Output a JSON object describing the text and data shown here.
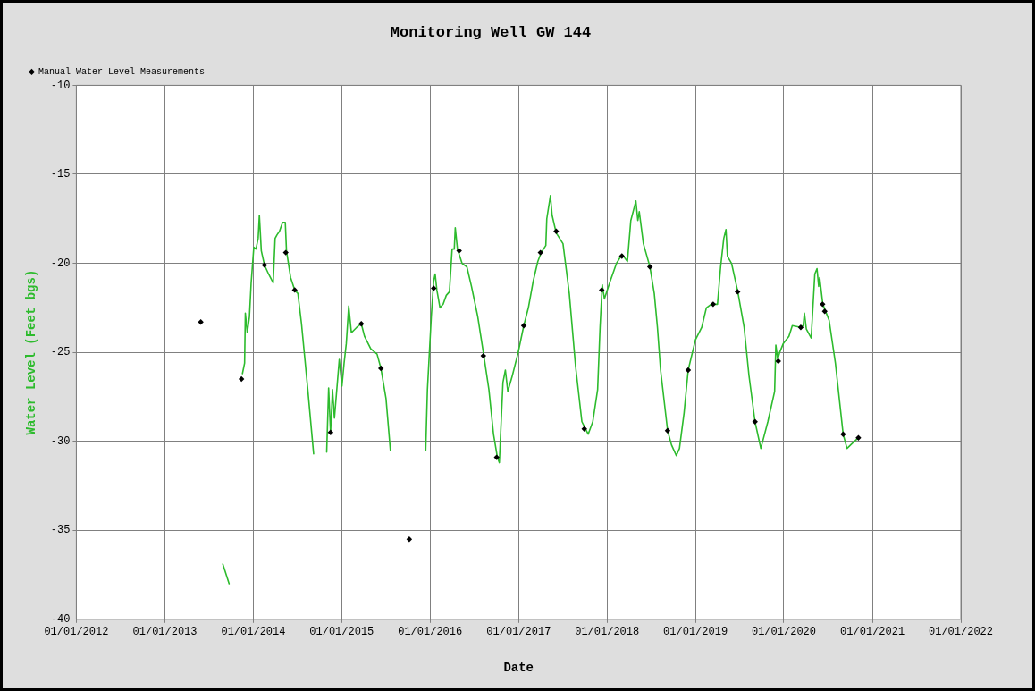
{
  "chart_data": {
    "type": "line",
    "title": "Monitoring Well GW_144",
    "xlabel": "Date",
    "ylabel": "Water Level (Feet bgs)",
    "xlim": [
      "2012-01-01",
      "2022-01-01"
    ],
    "xticks": [
      {
        "value": "2012-01-01",
        "label": "01/01/2012"
      },
      {
        "value": "2013-01-01",
        "label": "01/01/2013"
      },
      {
        "value": "2014-01-01",
        "label": "01/01/2014"
      },
      {
        "value": "2015-01-01",
        "label": "01/01/2015"
      },
      {
        "value": "2016-01-01",
        "label": "01/01/2016"
      },
      {
        "value": "2017-01-01",
        "label": "01/01/2017"
      },
      {
        "value": "2018-01-01",
        "label": "01/01/2018"
      },
      {
        "value": "2019-01-01",
        "label": "01/01/2019"
      },
      {
        "value": "2020-01-01",
        "label": "01/01/2020"
      },
      {
        "value": "2021-01-01",
        "label": "01/01/2021"
      },
      {
        "value": "2022-01-01",
        "label": "01/01/2022"
      }
    ],
    "ylim": [
      -40,
      -10
    ],
    "yticks": [
      -40,
      -35,
      -30,
      -25,
      -20,
      -15,
      -10
    ],
    "grid": true,
    "legend": "top left",
    "series": [
      {
        "type": "line",
        "color": "#2dbb2d",
        "marker": "none",
        "x": [
          "2013-08-28",
          "2013-09-23",
          "2013-10-20",
          "2013-11-17",
          "2013-11-26",
          "2013-11-29",
          "2013-12-07",
          "2013-12-16",
          "2013-12-23",
          "2014-01-03",
          "2014-01-12",
          "2014-01-21",
          "2014-01-26",
          "2014-02-03",
          "2014-02-16",
          "2014-03-05",
          "2014-03-24",
          "2014-04-01",
          "2014-04-09",
          "2014-04-19",
          "2014-05-02",
          "2014-05-13",
          "2014-05-18",
          "2014-06-04",
          "2014-06-21",
          "2014-07-04",
          "2014-07-19",
          "2014-08-14",
          "2014-09-07",
          "2014-10-01",
          "2014-10-31",
          "2014-11-08",
          "2014-11-16",
          "2014-11-24",
          "2014-12-02",
          "2014-12-22",
          "2015-01-02",
          "2015-01-11",
          "2015-01-20",
          "2015-01-30",
          "2015-02-10",
          "2015-03-04",
          "2015-03-23",
          "2015-04-05",
          "2015-05-01",
          "2015-05-27",
          "2015-06-12",
          "2015-07-03",
          "2015-07-21",
          "2015-10-01",
          "2015-12-14",
          "2015-12-21",
          "2016-01-06",
          "2016-01-16",
          "2016-01-22",
          "2016-01-29",
          "2016-02-11",
          "2016-02-24",
          "2016-03-08",
          "2016-03-21",
          "2016-04-01",
          "2016-04-10",
          "2016-04-14",
          "2016-04-23",
          "2016-05-12",
          "2016-06-01",
          "2016-06-20",
          "2016-07-16",
          "2016-08-09",
          "2016-08-31",
          "2016-09-19",
          "2016-10-05",
          "2016-10-13",
          "2016-10-22",
          "2016-10-28",
          "2016-11-07",
          "2016-11-17",
          "2016-12-06",
          "2016-12-30",
          "2017-01-22",
          "2017-02-10",
          "2017-03-02",
          "2017-03-21",
          "2017-04-04",
          "2017-04-23",
          "2017-04-27",
          "2017-05-12",
          "2017-05-19",
          "2017-06-05",
          "2017-07-03",
          "2017-07-29",
          "2017-08-24",
          "2017-09-19",
          "2017-10-15",
          "2017-11-03",
          "2017-11-23",
          "2017-12-03",
          "2017-12-12",
          "2017-12-21",
          "2018-01-14",
          "2018-02-09",
          "2018-03-04",
          "2018-03-26",
          "2018-04-09",
          "2018-04-30",
          "2018-05-08",
          "2018-05-14",
          "2018-05-31",
          "2018-06-27",
          "2018-07-15",
          "2018-07-28",
          "2018-08-10",
          "2018-09-08",
          "2018-09-24",
          "2018-10-14",
          "2018-10-27",
          "2018-11-15",
          "2018-12-02",
          "2019-01-01",
          "2019-01-27",
          "2019-02-15",
          "2019-03-07",
          "2019-04-02",
          "2019-04-15",
          "2019-04-28",
          "2019-05-07",
          "2019-05-13",
          "2019-05-30",
          "2019-06-25",
          "2019-07-21",
          "2019-08-10",
          "2019-09-04",
          "2019-09-28",
          "2019-10-27",
          "2019-11-24",
          "2019-11-29",
          "2019-12-07",
          "2019-12-15",
          "2019-12-30",
          "2020-01-22",
          "2020-02-05",
          "2020-03-11",
          "2020-03-21",
          "2020-03-26",
          "2020-04-03",
          "2020-04-23",
          "2020-05-08",
          "2020-05-17",
          "2020-05-24",
          "2020-05-28",
          "2020-06-10",
          "2020-07-06",
          "2020-08-01",
          "2020-09-02",
          "2020-09-18",
          "2020-10-11",
          "2020-11-04"
        ],
        "values": [
          -36.9,
          -38.0,
          null,
          -26.2,
          -25.6,
          -22.8,
          -23.9,
          -23.0,
          -21.1,
          -19.1,
          -19.2,
          -18.6,
          -17.3,
          -19.3,
          -20.1,
          -20.6,
          -21.1,
          -18.6,
          -18.4,
          -18.2,
          -17.7,
          -17.7,
          -19.3,
          -20.8,
          -21.5,
          -21.7,
          -23.4,
          -27.1,
          -30.7,
          null,
          -30.6,
          -27.0,
          -29.5,
          -27.1,
          -28.7,
          -25.4,
          -26.9,
          -25.6,
          -24.5,
          -22.4,
          -23.9,
          -23.6,
          -23.4,
          -24.1,
          -24.8,
          -25.1,
          -25.9,
          -27.6,
          -30.5,
          null,
          -30.5,
          -27.1,
          -23.0,
          -21.0,
          -20.6,
          -21.5,
          -22.5,
          -22.3,
          -21.8,
          -21.6,
          -19.2,
          -19.2,
          -18.0,
          -19.2,
          -20.0,
          -20.2,
          -21.3,
          -23.0,
          -25.1,
          -27.1,
          -29.6,
          -30.9,
          -31.2,
          -28.5,
          -26.7,
          -26.0,
          -27.2,
          -26.3,
          -25.0,
          -23.5,
          -22.5,
          -21.0,
          -19.9,
          -19.4,
          -19.0,
          -17.5,
          -16.2,
          -17.3,
          -18.3,
          -18.9,
          -21.7,
          -25.8,
          -28.9,
          -29.6,
          -28.9,
          -27.1,
          -23.6,
          -21.2,
          -22.0,
          -21.0,
          -20.0,
          -19.5,
          -19.9,
          -17.6,
          -16.5,
          -17.6,
          -17.1,
          -18.9,
          -20.2,
          -21.7,
          -23.6,
          -26.0,
          -29.4,
          -30.2,
          -30.8,
          -30.4,
          -28.4,
          -26.0,
          -24.3,
          -23.6,
          -22.5,
          -22.3,
          -22.3,
          -20.2,
          -18.6,
          -18.1,
          -19.6,
          -20.0,
          -21.6,
          -23.6,
          -26.3,
          -28.9,
          -30.4,
          -28.9,
          -27.2,
          -24.6,
          -25.4,
          -25.0,
          -24.5,
          -24.1,
          -23.5,
          -23.6,
          -23.5,
          -22.8,
          -23.7,
          -24.2,
          -20.6,
          -20.3,
          -21.3,
          -20.8,
          -22.3,
          -23.2,
          -25.6,
          -29.6,
          -30.4,
          -30.1,
          -29.8
        ]
      },
      {
        "type": "scatter",
        "name": "Manual Water Level Measurements",
        "color": "#000000",
        "marker": "diamond",
        "x": [
          "2013-05-29",
          "2013-11-13",
          "2014-02-16",
          "2014-05-15",
          "2014-06-21",
          "2014-11-16",
          "2015-03-23",
          "2015-06-12",
          "2015-10-07",
          "2016-01-16",
          "2016-04-30",
          "2016-08-08",
          "2016-10-02",
          "2017-01-22",
          "2017-04-01",
          "2017-06-05",
          "2017-09-29",
          "2017-12-10",
          "2018-03-03",
          "2018-06-27",
          "2018-09-08",
          "2018-12-02",
          "2019-03-15",
          "2019-06-24",
          "2019-09-04",
          "2019-12-09",
          "2020-03-11",
          "2020-06-09",
          "2020-06-18",
          "2020-09-02",
          "2020-11-04"
        ],
        "values": [
          -23.3,
          -26.5,
          -20.1,
          -19.4,
          -21.5,
          -29.5,
          -23.4,
          -25.9,
          -35.5,
          -21.4,
          -19.3,
          -25.2,
          -30.9,
          -23.5,
          -19.4,
          -18.2,
          -29.3,
          -21.5,
          -19.6,
          -20.2,
          -29.4,
          -26.0,
          -22.3,
          -21.6,
          -28.9,
          -25.5,
          -23.6,
          -22.3,
          -22.7,
          -29.6,
          -29.8
        ]
      }
    ]
  }
}
